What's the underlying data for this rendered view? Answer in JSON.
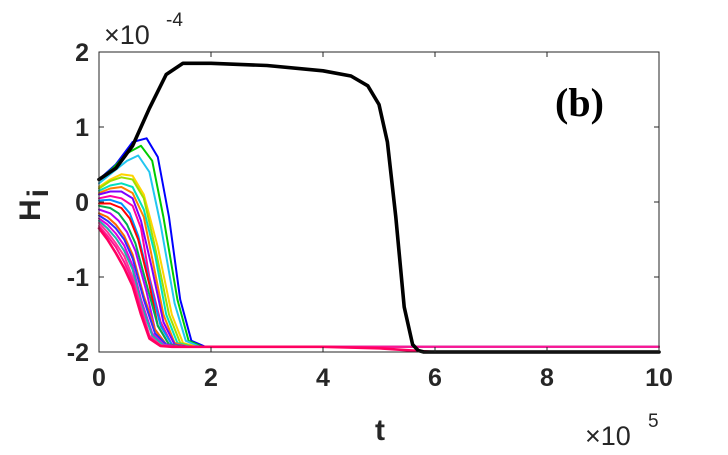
{
  "chart_data": {
    "type": "line",
    "panel_label": "(b)",
    "xlabel": "t",
    "ylabel": "H",
    "ylabel_sub": "i",
    "x_multiplier": {
      "base": "×10",
      "exp": "5"
    },
    "y_multiplier": {
      "base": "×10",
      "exp": "-4"
    },
    "xlim": [
      0,
      10
    ],
    "ylim": [
      -2,
      2
    ],
    "xticks": [
      0,
      2,
      4,
      6,
      8,
      10
    ],
    "xtick_labels": [
      "0",
      "2",
      "4",
      "6",
      "8",
      "10"
    ],
    "yticks": [
      -2,
      -1,
      0,
      1,
      2
    ],
    "ytick_labels": [
      "-2",
      "-1",
      "0",
      "1",
      "2"
    ],
    "grid": false,
    "series": [
      {
        "color": "#000000",
        "width": 3.6,
        "x": [
          0,
          0.3,
          0.6,
          0.9,
          1.2,
          1.5,
          2,
          3,
          4,
          4.5,
          4.8,
          5.0,
          5.15,
          5.3,
          5.45,
          5.6,
          5.7,
          5.8,
          6,
          7,
          8,
          9,
          10
        ],
        "y": [
          0.3,
          0.45,
          0.75,
          1.25,
          1.7,
          1.85,
          1.85,
          1.82,
          1.75,
          1.68,
          1.55,
          1.3,
          0.8,
          -0.2,
          -1.4,
          -1.9,
          -1.98,
          -2,
          -2,
          -2,
          -2,
          -2,
          -2
        ]
      },
      {
        "color": "#0000ff",
        "width": 2,
        "x": [
          0,
          0.3,
          0.6,
          0.85,
          1.05,
          1.25,
          1.45,
          1.65,
          1.9,
          10
        ],
        "y": [
          0.3,
          0.5,
          0.8,
          0.85,
          0.6,
          -0.2,
          -1.3,
          -1.85,
          -1.93,
          -1.93
        ]
      },
      {
        "color": "#00cc00",
        "width": 2,
        "x": [
          0,
          0.25,
          0.5,
          0.75,
          0.95,
          1.15,
          1.4,
          1.6,
          1.85,
          10
        ],
        "y": [
          0.3,
          0.45,
          0.65,
          0.75,
          0.55,
          -0.2,
          -1.3,
          -1.85,
          -1.93,
          -1.93
        ]
      },
      {
        "color": "#22c6f0",
        "width": 2,
        "x": [
          0,
          0.25,
          0.5,
          0.7,
          0.9,
          1.1,
          1.35,
          1.55,
          1.8,
          10
        ],
        "y": [
          0.25,
          0.4,
          0.55,
          0.62,
          0.4,
          -0.3,
          -1.35,
          -1.85,
          -1.93,
          -1.93
        ]
      },
      {
        "color": "#ffd400",
        "width": 2,
        "x": [
          0,
          0.2,
          0.4,
          0.6,
          0.8,
          1.05,
          1.3,
          1.5,
          1.75,
          10
        ],
        "y": [
          0.2,
          0.3,
          0.37,
          0.35,
          0.1,
          -0.6,
          -1.5,
          -1.88,
          -1.93,
          -1.93
        ]
      },
      {
        "color": "#9de000",
        "width": 2,
        "x": [
          0,
          0.2,
          0.4,
          0.6,
          0.8,
          1.0,
          1.25,
          1.45,
          1.7,
          10
        ],
        "y": [
          0.18,
          0.28,
          0.33,
          0.3,
          0.05,
          -0.6,
          -1.5,
          -1.88,
          -1.93,
          -1.93
        ]
      },
      {
        "color": "#00e0c0",
        "width": 2,
        "x": [
          0,
          0.2,
          0.4,
          0.6,
          0.8,
          1.0,
          1.2,
          1.4,
          1.65,
          10
        ],
        "y": [
          0.15,
          0.22,
          0.25,
          0.2,
          -0.1,
          -0.7,
          -1.5,
          -1.88,
          -1.93,
          -1.93
        ]
      },
      {
        "color": "#ff8000",
        "width": 2,
        "x": [
          0,
          0.2,
          0.4,
          0.6,
          0.8,
          0.95,
          1.15,
          1.35,
          1.6,
          10
        ],
        "y": [
          0.12,
          0.18,
          0.2,
          0.12,
          -0.2,
          -0.75,
          -1.5,
          -1.88,
          -1.93,
          -1.93
        ]
      },
      {
        "color": "#7a00ff",
        "width": 2,
        "x": [
          0,
          0.2,
          0.4,
          0.6,
          0.75,
          0.95,
          1.15,
          1.35,
          1.6,
          10
        ],
        "y": [
          0.1,
          0.14,
          0.14,
          0.05,
          -0.25,
          -0.9,
          -1.6,
          -1.9,
          -1.93,
          -1.93
        ]
      },
      {
        "color": "#ff00a0",
        "width": 2,
        "x": [
          0,
          0.2,
          0.4,
          0.6,
          0.75,
          0.9,
          1.1,
          1.3,
          1.55,
          10
        ],
        "y": [
          0.05,
          0.08,
          0.05,
          -0.05,
          -0.35,
          -1.0,
          -1.6,
          -1.9,
          -1.93,
          -1.93
        ]
      },
      {
        "color": "#0090ff",
        "width": 2,
        "x": [
          0,
          0.2,
          0.4,
          0.55,
          0.7,
          0.9,
          1.1,
          1.3,
          1.55,
          10
        ],
        "y": [
          0.02,
          0.03,
          -0.02,
          -0.15,
          -0.45,
          -1.05,
          -1.65,
          -1.9,
          -1.93,
          -1.93
        ]
      },
      {
        "color": "#ff0000",
        "width": 2,
        "x": [
          0,
          0.2,
          0.4,
          0.55,
          0.7,
          0.9,
          1.05,
          1.25,
          1.5,
          10
        ],
        "y": [
          -0.02,
          -0.02,
          -0.08,
          -0.22,
          -0.5,
          -1.1,
          -1.65,
          -1.9,
          -1.93,
          -1.93
        ]
      },
      {
        "color": "#00b050",
        "width": 2,
        "x": [
          0,
          0.2,
          0.35,
          0.5,
          0.65,
          0.85,
          1.05,
          1.25,
          1.5,
          10
        ],
        "y": [
          -0.05,
          -0.08,
          -0.15,
          -0.3,
          -0.55,
          -1.1,
          -1.65,
          -1.9,
          -1.93,
          -1.93
        ]
      },
      {
        "color": "#b000ff",
        "width": 2,
        "x": [
          0,
          0.2,
          0.35,
          0.5,
          0.65,
          0.85,
          1.0,
          1.2,
          1.45,
          10
        ],
        "y": [
          -0.1,
          -0.15,
          -0.25,
          -0.4,
          -0.65,
          -1.2,
          -1.7,
          -1.9,
          -1.93,
          -1.93
        ]
      },
      {
        "color": "#ff6600",
        "width": 2,
        "x": [
          0,
          0.15,
          0.3,
          0.45,
          0.6,
          0.8,
          1.0,
          1.2,
          1.45,
          10
        ],
        "y": [
          -0.15,
          -0.2,
          -0.3,
          -0.45,
          -0.7,
          -1.25,
          -1.7,
          -1.9,
          -1.93,
          -1.93
        ]
      },
      {
        "color": "#3030ff",
        "width": 2,
        "x": [
          0,
          0.15,
          0.3,
          0.45,
          0.6,
          0.8,
          1.0,
          1.2,
          1.4,
          10
        ],
        "y": [
          -0.18,
          -0.25,
          -0.35,
          -0.5,
          -0.75,
          -1.3,
          -1.75,
          -1.9,
          -1.93,
          -1.93
        ]
      },
      {
        "color": "#e000e0",
        "width": 2,
        "x": [
          0,
          0.15,
          0.3,
          0.45,
          0.6,
          0.75,
          0.95,
          1.15,
          1.4,
          10
        ],
        "y": [
          -0.22,
          -0.3,
          -0.42,
          -0.58,
          -0.85,
          -1.3,
          -1.75,
          -1.9,
          -1.93,
          -1.93
        ]
      },
      {
        "color": "#20b0b0",
        "width": 2,
        "x": [
          0,
          0.15,
          0.3,
          0.45,
          0.6,
          0.75,
          0.95,
          1.15,
          1.35,
          10
        ],
        "y": [
          -0.25,
          -0.35,
          -0.48,
          -0.65,
          -0.9,
          -1.35,
          -1.78,
          -1.91,
          -1.93,
          -1.93
        ]
      },
      {
        "color": "#ff3399",
        "width": 2,
        "x": [
          0,
          0.15,
          0.3,
          0.45,
          0.6,
          0.75,
          0.9,
          1.1,
          1.35,
          10
        ],
        "y": [
          -0.28,
          -0.4,
          -0.55,
          -0.72,
          -1.0,
          -1.4,
          -1.78,
          -1.91,
          -1.93,
          -1.93
        ]
      },
      {
        "color": "#ff1493",
        "width": 2,
        "x": [
          0,
          0.15,
          0.3,
          0.45,
          0.6,
          0.75,
          0.9,
          1.1,
          1.3,
          10
        ],
        "y": [
          -0.32,
          -0.45,
          -0.6,
          -0.8,
          -1.05,
          -1.45,
          -1.8,
          -1.92,
          -1.93,
          -1.93
        ]
      },
      {
        "color": "#ff0060",
        "width": 2.6,
        "x": [
          0,
          0.15,
          0.3,
          0.45,
          0.6,
          0.75,
          0.9,
          1.1,
          1.3,
          2,
          4,
          5,
          5.4,
          5.8,
          6,
          10
        ],
        "y": [
          -0.35,
          -0.5,
          -0.68,
          -0.88,
          -1.12,
          -1.5,
          -1.82,
          -1.92,
          -1.93,
          -1.93,
          -1.93,
          -1.95,
          -1.97,
          -1.99,
          -2,
          -2
        ]
      }
    ]
  }
}
